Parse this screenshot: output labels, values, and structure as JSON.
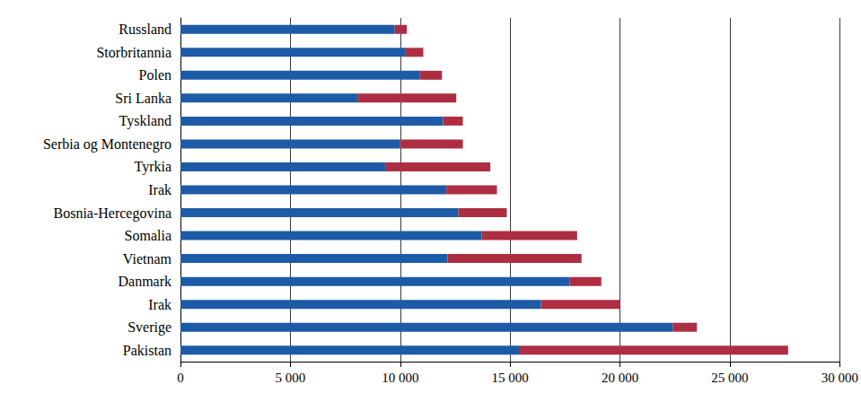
{
  "chart_data": {
    "type": "bar",
    "orientation": "horizontal",
    "stacked": true,
    "grid": true,
    "categories": [
      "Russland",
      "Storbritannia",
      "Polen",
      "Sri Lanka",
      "Tyskland",
      "Serbia og Montenegro",
      "Tyrkia",
      "Irak",
      "Bosnia-Hercegovina",
      "Somalia",
      "Vietnam",
      "Danmark",
      "Irak",
      "Sverige",
      "Pakistan"
    ],
    "series": [
      {
        "color": "#1d5ba6",
        "values": [
          9750,
          10250,
          10900,
          8050,
          11950,
          10000,
          9350,
          12100,
          12650,
          13700,
          12150,
          17700,
          16400,
          22400,
          15400
        ]
      },
      {
        "color": "#ad2e42",
        "values": [
          550,
          800,
          1000,
          4500,
          900,
          2850,
          4750,
          2300,
          2200,
          4350,
          6100,
          1450,
          3600,
          1100,
          12250
        ]
      }
    ],
    "xlim": [
      0,
      30000
    ],
    "xticks": [
      0,
      {
        "value": 5000,
        "label": "5 000"
      },
      {
        "value": 10000,
        "label": "10 000"
      },
      {
        "value": 15000,
        "label": "15 000"
      },
      {
        "value": 20000,
        "label": "20 000"
      },
      {
        "value": 25000,
        "label": "25 000"
      },
      {
        "value": 30000,
        "label": "30 000"
      }
    ]
  }
}
